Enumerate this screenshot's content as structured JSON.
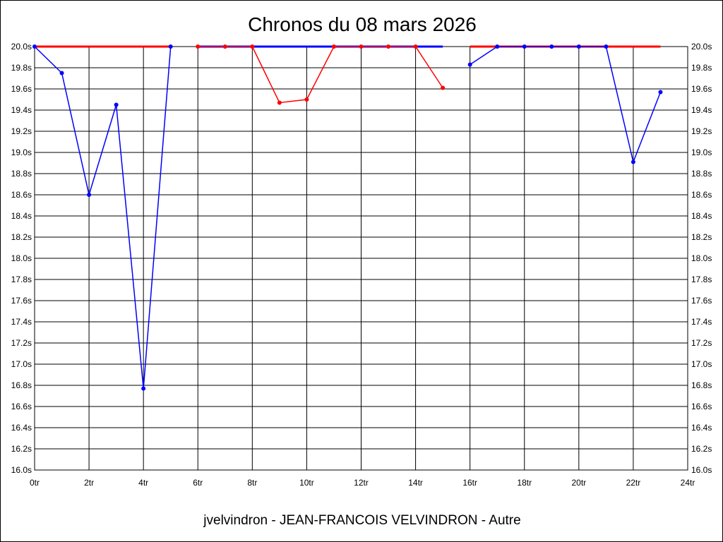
{
  "chart_data": {
    "type": "line",
    "title": "Chronos du 08 mars 2026",
    "xlabel": "jvelvindron - JEAN-FRANCOIS VELVINDRON - Autre",
    "ylabel": "",
    "xlim": [
      0,
      24
    ],
    "ylim": [
      16.0,
      20.0
    ],
    "x_ticks": [
      "0tr",
      "2tr",
      "4tr",
      "6tr",
      "8tr",
      "10tr",
      "12tr",
      "14tr",
      "16tr",
      "18tr",
      "20tr",
      "22tr",
      "24tr"
    ],
    "y_ticks": [
      "16.0s",
      "16.2s",
      "16.4s",
      "16.6s",
      "16.8s",
      "17.0s",
      "17.2s",
      "17.4s",
      "17.6s",
      "17.8s",
      "18.0s",
      "18.2s",
      "18.4s",
      "18.6s",
      "18.8s",
      "19.0s",
      "19.2s",
      "19.4s",
      "19.6s",
      "19.8s",
      "20.0s"
    ],
    "grid": true,
    "series": [
      {
        "color": "#0000ff",
        "ref_color": "#ff0000",
        "x": [
          0,
          1,
          2,
          3,
          4,
          5
        ],
        "y": [
          20.0,
          19.75,
          18.6,
          19.45,
          16.77,
          20.0
        ]
      },
      {
        "color": "#ff0000",
        "ref_color": "#0000ff",
        "x": [
          6,
          7,
          8,
          9,
          10,
          11,
          12,
          13,
          14,
          15
        ],
        "y": [
          20.0,
          20.0,
          20.0,
          19.47,
          19.5,
          20.0,
          20.0,
          20.0,
          20.0,
          19.61
        ]
      },
      {
        "color": "#0000ff",
        "ref_color": "#ff0000",
        "x": [
          16,
          17,
          18,
          19,
          20,
          21,
          22,
          23
        ],
        "y": [
          19.83,
          20.0,
          20.0,
          20.0,
          20.0,
          20.0,
          18.91,
          19.57
        ]
      }
    ],
    "reference_value": 20.0
  }
}
